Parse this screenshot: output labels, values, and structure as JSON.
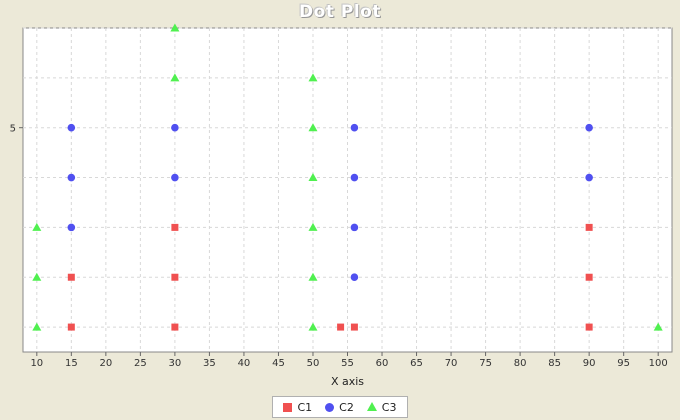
{
  "chart_data": {
    "type": "scatter",
    "title": "Dot Plot",
    "xlabel": "X axis",
    "ylabel": "",
    "xlim": [
      8,
      102
    ],
    "ylim": [
      0.5,
      7.0
    ],
    "x_ticks": [
      10,
      15,
      20,
      25,
      30,
      35,
      40,
      45,
      50,
      55,
      60,
      65,
      70,
      75,
      80,
      85,
      90,
      95,
      100
    ],
    "y_ticks": [
      5
    ],
    "grid": true,
    "legend_position": "bottom",
    "series": [
      {
        "name": "C1",
        "color": "#f05050",
        "marker": "square",
        "points": [
          {
            "x": 15,
            "y": 1
          },
          {
            "x": 15,
            "y": 2
          },
          {
            "x": 30,
            "y": 1
          },
          {
            "x": 30,
            "y": 2
          },
          {
            "x": 30,
            "y": 3
          },
          {
            "x": 54,
            "y": 1
          },
          {
            "x": 56,
            "y": 1
          },
          {
            "x": 90,
            "y": 1
          },
          {
            "x": 90,
            "y": 2
          },
          {
            "x": 90,
            "y": 3
          }
        ]
      },
      {
        "name": "C2",
        "color": "#5050f0",
        "marker": "circle",
        "points": [
          {
            "x": 15,
            "y": 3
          },
          {
            "x": 15,
            "y": 4
          },
          {
            "x": 15,
            "y": 5
          },
          {
            "x": 30,
            "y": 4
          },
          {
            "x": 30,
            "y": 5
          },
          {
            "x": 56,
            "y": 2
          },
          {
            "x": 56,
            "y": 3
          },
          {
            "x": 56,
            "y": 4
          },
          {
            "x": 56,
            "y": 5
          },
          {
            "x": 90,
            "y": 4
          },
          {
            "x": 90,
            "y": 5
          }
        ]
      },
      {
        "name": "C3",
        "color": "#50f050",
        "marker": "triangle",
        "points": [
          {
            "x": 10,
            "y": 1
          },
          {
            "x": 10,
            "y": 2
          },
          {
            "x": 10,
            "y": 3
          },
          {
            "x": 30,
            "y": 6
          },
          {
            "x": 30,
            "y": 7
          },
          {
            "x": 50,
            "y": 1
          },
          {
            "x": 50,
            "y": 2
          },
          {
            "x": 50,
            "y": 3
          },
          {
            "x": 50,
            "y": 4
          },
          {
            "x": 50,
            "y": 5
          },
          {
            "x": 50,
            "y": 6
          },
          {
            "x": 100,
            "y": 1
          }
        ]
      }
    ]
  },
  "colors": {
    "background": "#ece9d8",
    "plot_background": "#ffffff",
    "grid": "#d8d8d8"
  }
}
